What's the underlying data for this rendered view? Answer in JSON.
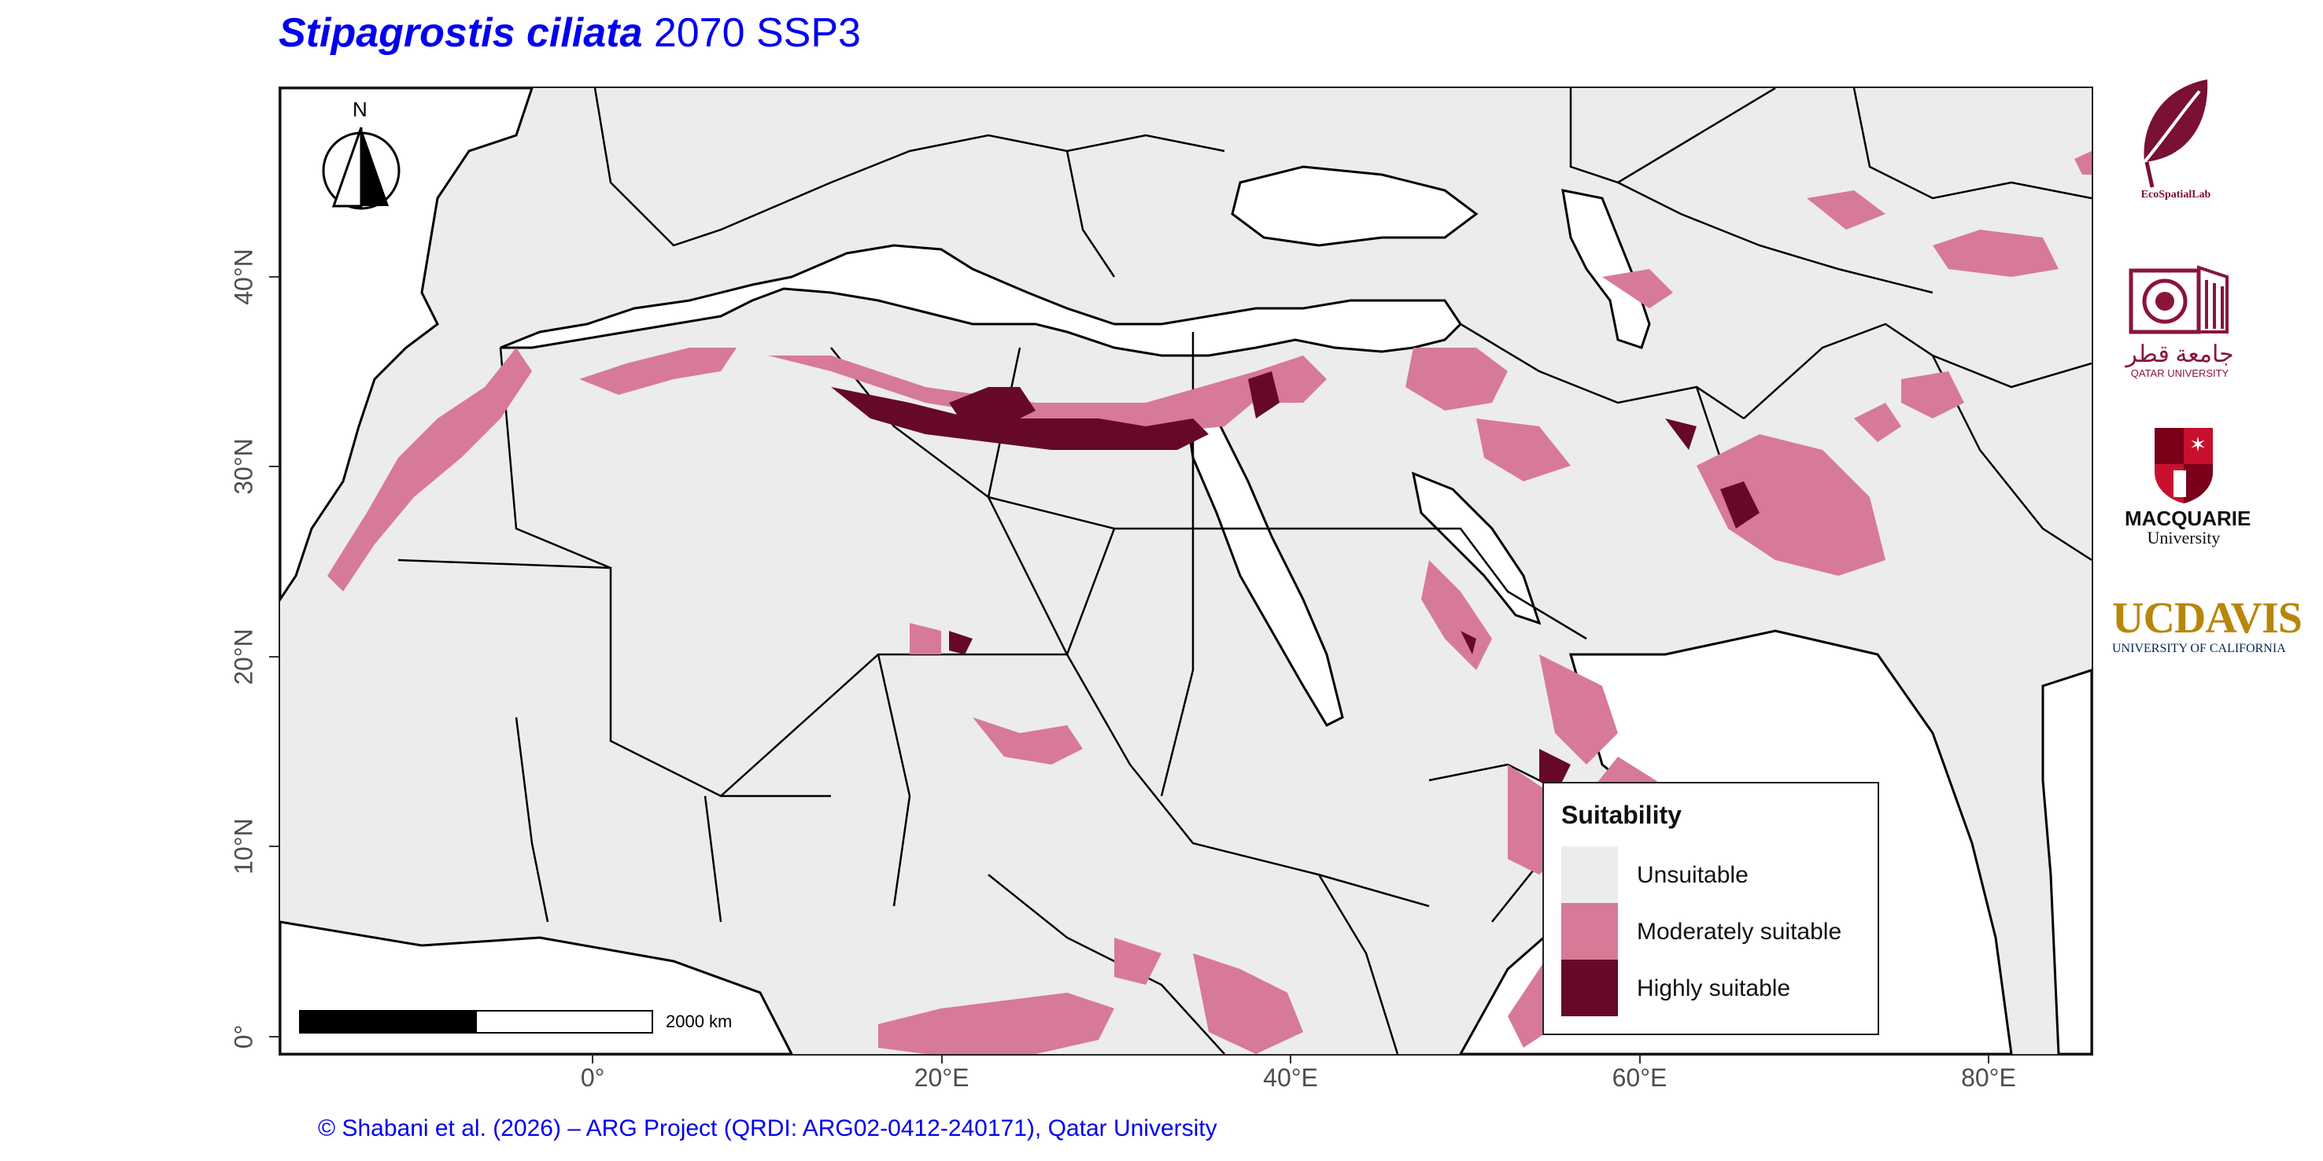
{
  "title": {
    "species": "Stipagrostis ciliata",
    "scenario": "2070 SSP3"
  },
  "credit": "© Shabani et al. (2026) – ARG Project (QRDI: ARG02-0412-240171), Qatar University",
  "map": {
    "lon_range": [
      -18,
      86
    ],
    "lat_range": [
      -1,
      50
    ],
    "y_ticks": [
      {
        "lat": 40,
        "label": "40°N"
      },
      {
        "lat": 30,
        "label": "30°N"
      },
      {
        "lat": 20,
        "label": "20°N"
      },
      {
        "lat": 10,
        "label": "10°N"
      },
      {
        "lat": 0,
        "label": "0°"
      }
    ],
    "x_ticks": [
      {
        "lon": 0,
        "label": "0°"
      },
      {
        "lon": 20,
        "label": "20°E"
      },
      {
        "lon": 40,
        "label": "40°E"
      },
      {
        "lon": 60,
        "label": "60°E"
      },
      {
        "lon": 80,
        "label": "80°E"
      }
    ],
    "colors": {
      "land": "#ececec",
      "sea": "#ffffff",
      "border": "#000000",
      "moderate": "#d77a97",
      "high": "#65082a"
    }
  },
  "north_arrow": {
    "label": "N"
  },
  "scale_bar": {
    "label": "2000 km"
  },
  "legend": {
    "title": "Suitability",
    "items": [
      {
        "label": "Unsuitable",
        "color": "#ececec"
      },
      {
        "label": "Moderately suitable",
        "color": "#d77a97"
      },
      {
        "label": "Highly suitable",
        "color": "#65082a"
      }
    ]
  },
  "logos": {
    "ecospatial": {
      "text": "EcoSpatialLab",
      "color": "#7a1033"
    },
    "qatar": {
      "arabic": "جامعة قطر",
      "english": "QATAR UNIVERSITY",
      "color": "#8a1538"
    },
    "macquarie": {
      "line1": "MACQUARIE",
      "line2": "University",
      "color": "#c8102e"
    },
    "ucdavis": {
      "uc": "UC",
      "davis": "DAVIS",
      "sub": "UNIVERSITY OF CALIFORNIA",
      "color": "#b8860b",
      "color2": "#022851"
    }
  }
}
